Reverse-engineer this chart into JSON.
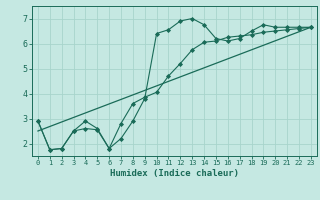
{
  "xlabel": "Humidex (Indice chaleur)",
  "bg_color": "#c5e8e2",
  "grid_color": "#a8d4cc",
  "line_color": "#1a6b58",
  "xlim": [
    -0.5,
    23.5
  ],
  "ylim": [
    1.5,
    7.5
  ],
  "xticks": [
    0,
    1,
    2,
    3,
    4,
    5,
    6,
    7,
    8,
    9,
    10,
    11,
    12,
    13,
    14,
    15,
    16,
    17,
    18,
    19,
    20,
    21,
    22,
    23
  ],
  "yticks": [
    2,
    3,
    4,
    5,
    6,
    7
  ],
  "curve1_x": [
    0,
    1,
    2,
    3,
    4,
    5,
    6,
    7,
    8,
    9,
    10,
    11,
    12,
    13,
    14,
    15,
    16,
    17,
    18,
    19,
    20,
    21,
    22,
    23
  ],
  "curve1_y": [
    2.9,
    1.75,
    1.8,
    2.5,
    2.9,
    2.6,
    1.8,
    2.2,
    2.9,
    3.8,
    6.4,
    6.55,
    6.9,
    7.0,
    6.75,
    6.2,
    6.1,
    6.2,
    6.5,
    6.75,
    6.65,
    6.65,
    6.65,
    6.65
  ],
  "curve2_x": [
    0,
    1,
    2,
    3,
    4,
    5,
    6,
    7,
    8,
    9,
    10,
    11,
    12,
    13,
    14,
    15,
    16,
    17,
    18,
    19,
    20,
    21,
    22,
    23
  ],
  "curve2_y": [
    2.9,
    1.75,
    1.8,
    2.5,
    2.6,
    2.55,
    1.8,
    2.8,
    3.6,
    3.85,
    4.05,
    4.7,
    5.2,
    5.75,
    6.05,
    6.1,
    6.25,
    6.3,
    6.35,
    6.45,
    6.5,
    6.55,
    6.6,
    6.65
  ],
  "line_x": [
    0,
    23
  ],
  "line_y": [
    2.5,
    6.65
  ]
}
